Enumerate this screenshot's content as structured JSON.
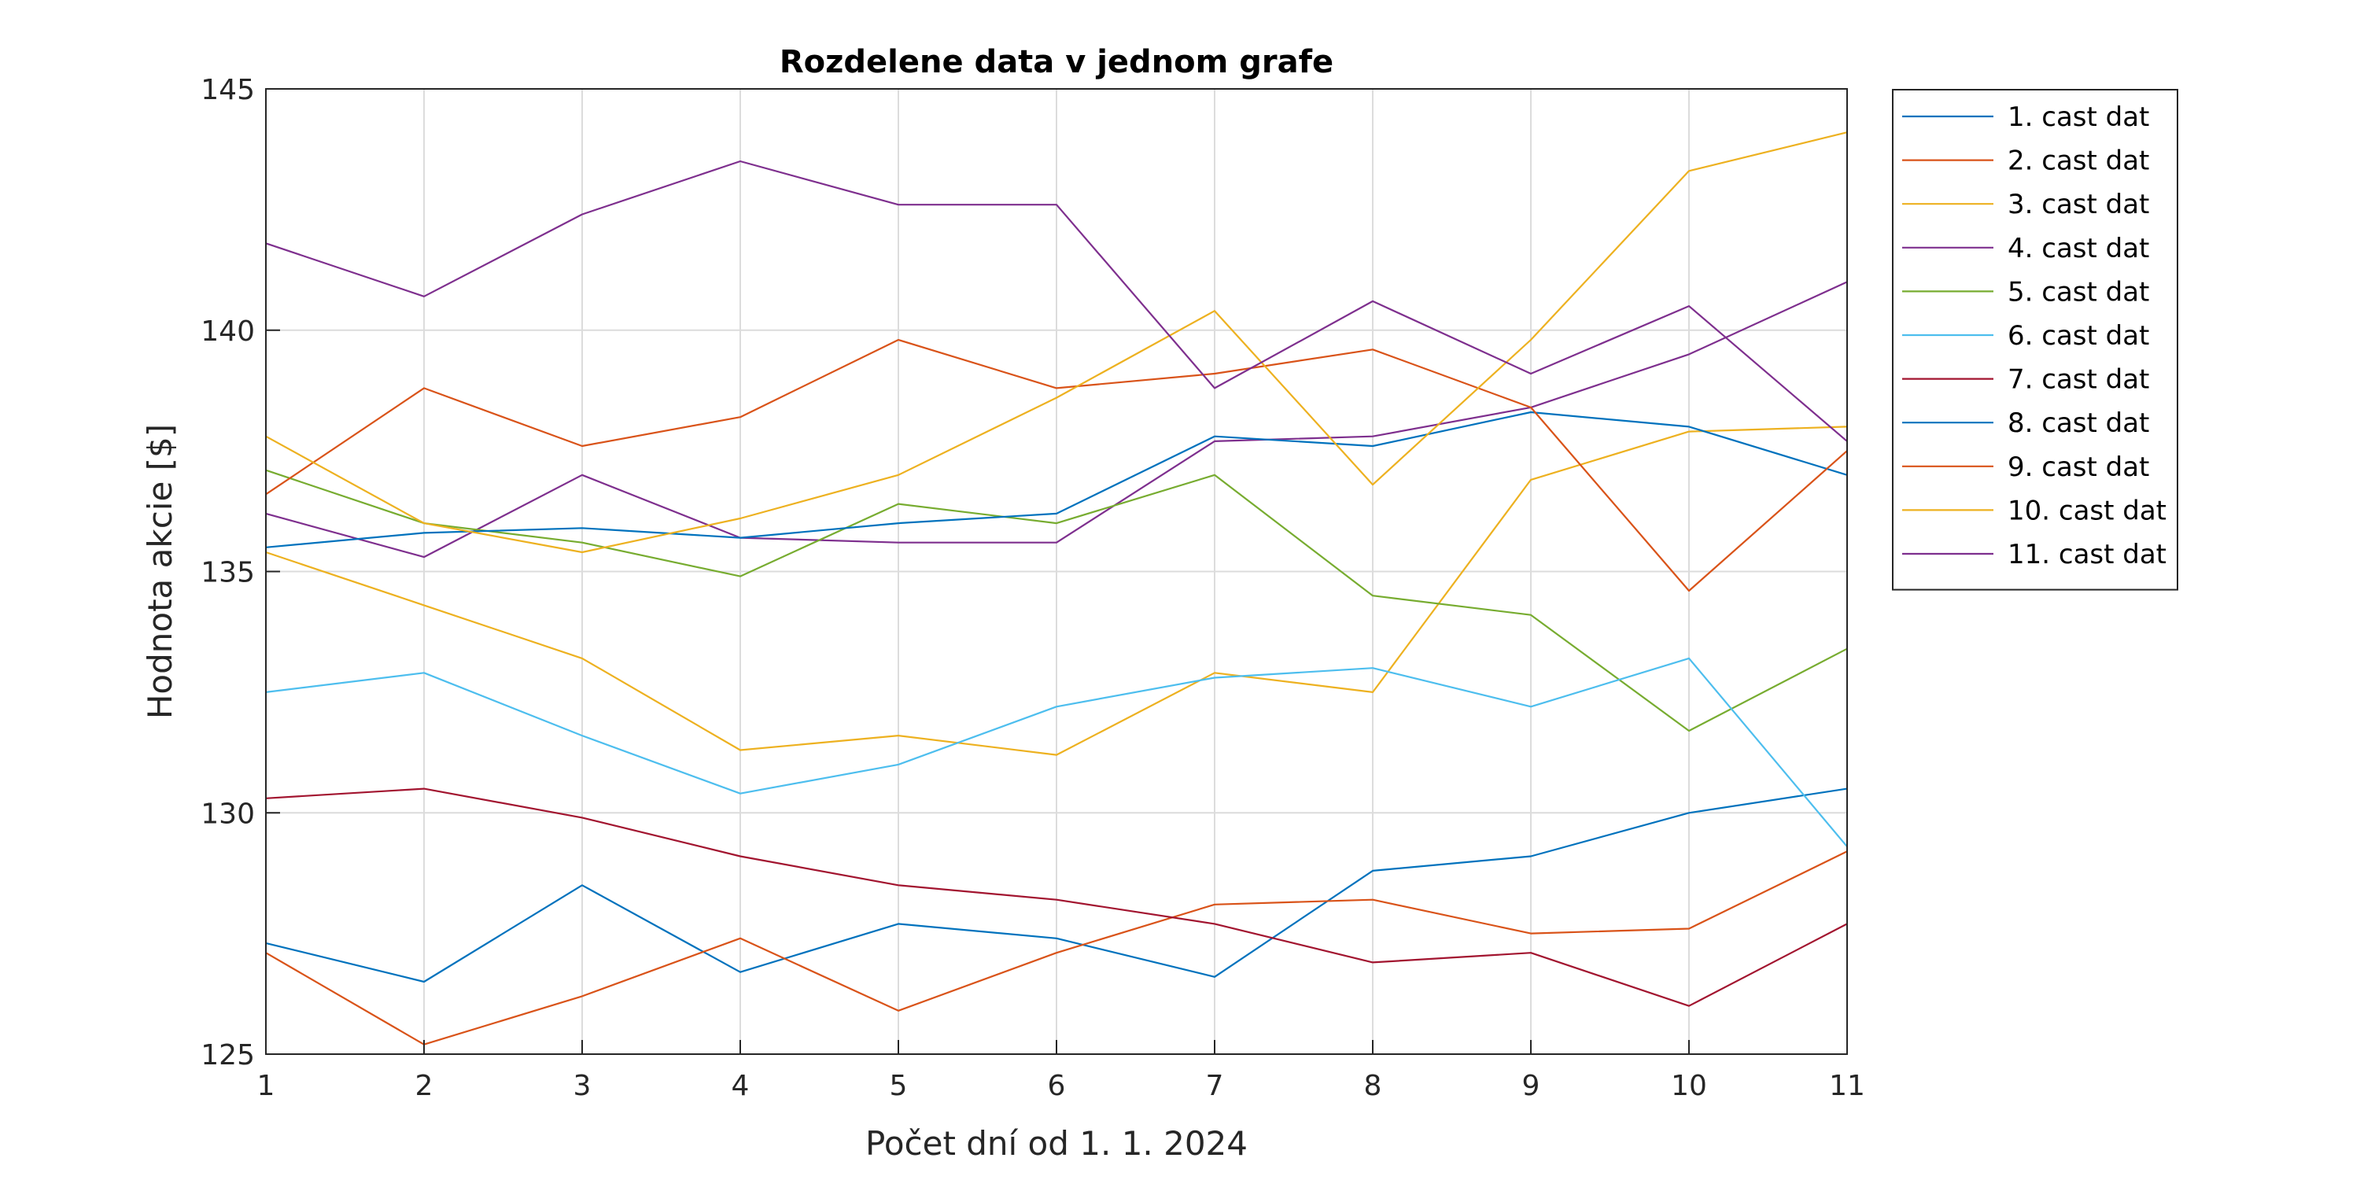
{
  "chart_data": {
    "type": "line",
    "title": "Rozdelene data v jednom grafe",
    "xlabel": "Počet dní od 1. 1. 2024",
    "ylabel": "Hodnota akcie [$]",
    "x": [
      1,
      2,
      3,
      4,
      5,
      6,
      7,
      8,
      9,
      10,
      11
    ],
    "xlim": [
      1,
      11
    ],
    "ylim": [
      125,
      145
    ],
    "xticks": [
      1,
      2,
      3,
      4,
      5,
      6,
      7,
      8,
      9,
      10,
      11
    ],
    "yticks": [
      125,
      130,
      135,
      140,
      145
    ],
    "grid": true,
    "legend_position": "outside-top-right",
    "series": [
      {
        "name": "1. cast dat",
        "color": "#0072BD",
        "values": [
          127.3,
          126.5,
          128.5,
          126.7,
          127.7,
          127.4,
          126.6,
          128.8,
          129.1,
          130.0,
          130.5
        ]
      },
      {
        "name": "2. cast dat",
        "color": "#D95319",
        "values": [
          127.1,
          125.2,
          126.2,
          127.4,
          125.9,
          127.1,
          128.1,
          128.2,
          127.5,
          127.6,
          129.2
        ]
      },
      {
        "name": "3. cast dat",
        "color": "#EDB120",
        "values": [
          135.4,
          134.3,
          133.2,
          131.3,
          131.6,
          131.2,
          132.9,
          132.5,
          136.9,
          137.9,
          138.0
        ]
      },
      {
        "name": "4. cast dat",
        "color": "#7E2F8E",
        "values": [
          136.2,
          135.3,
          137.0,
          135.7,
          135.6,
          135.6,
          137.7,
          137.8,
          138.4,
          139.5,
          141.0
        ]
      },
      {
        "name": "5. cast dat",
        "color": "#77AC30",
        "values": [
          137.1,
          136.0,
          135.6,
          134.9,
          136.4,
          136.0,
          137.0,
          134.5,
          134.1,
          131.7,
          133.4
        ]
      },
      {
        "name": "6. cast dat",
        "color": "#4DBEEE",
        "values": [
          132.5,
          132.9,
          131.6,
          130.4,
          131.0,
          132.2,
          132.8,
          133.0,
          132.2,
          133.2,
          129.3
        ]
      },
      {
        "name": "7. cast dat",
        "color": "#A2142F",
        "values": [
          130.3,
          130.5,
          129.9,
          129.1,
          128.5,
          128.2,
          127.7,
          126.9,
          127.1,
          126.0,
          127.7
        ]
      },
      {
        "name": "8. cast dat",
        "color": "#0072BD",
        "values": [
          135.5,
          135.8,
          135.9,
          135.7,
          136.0,
          136.2,
          137.8,
          137.6,
          138.3,
          138.0,
          137.0
        ]
      },
      {
        "name": "9. cast dat",
        "color": "#D95319",
        "values": [
          136.6,
          138.8,
          137.6,
          138.2,
          139.8,
          138.8,
          139.1,
          139.6,
          138.4,
          134.6,
          137.5
        ]
      },
      {
        "name": "10. cast dat",
        "color": "#EDB120",
        "values": [
          137.8,
          136.0,
          135.4,
          136.1,
          137.0,
          138.6,
          140.4,
          136.8,
          139.8,
          143.3,
          144.1
        ]
      },
      {
        "name": "11. cast dat",
        "color": "#7E2F8E",
        "values": [
          141.8,
          140.7,
          142.4,
          143.5,
          142.6,
          142.6,
          138.8,
          140.6,
          139.1,
          140.5,
          137.7
        ]
      }
    ]
  }
}
